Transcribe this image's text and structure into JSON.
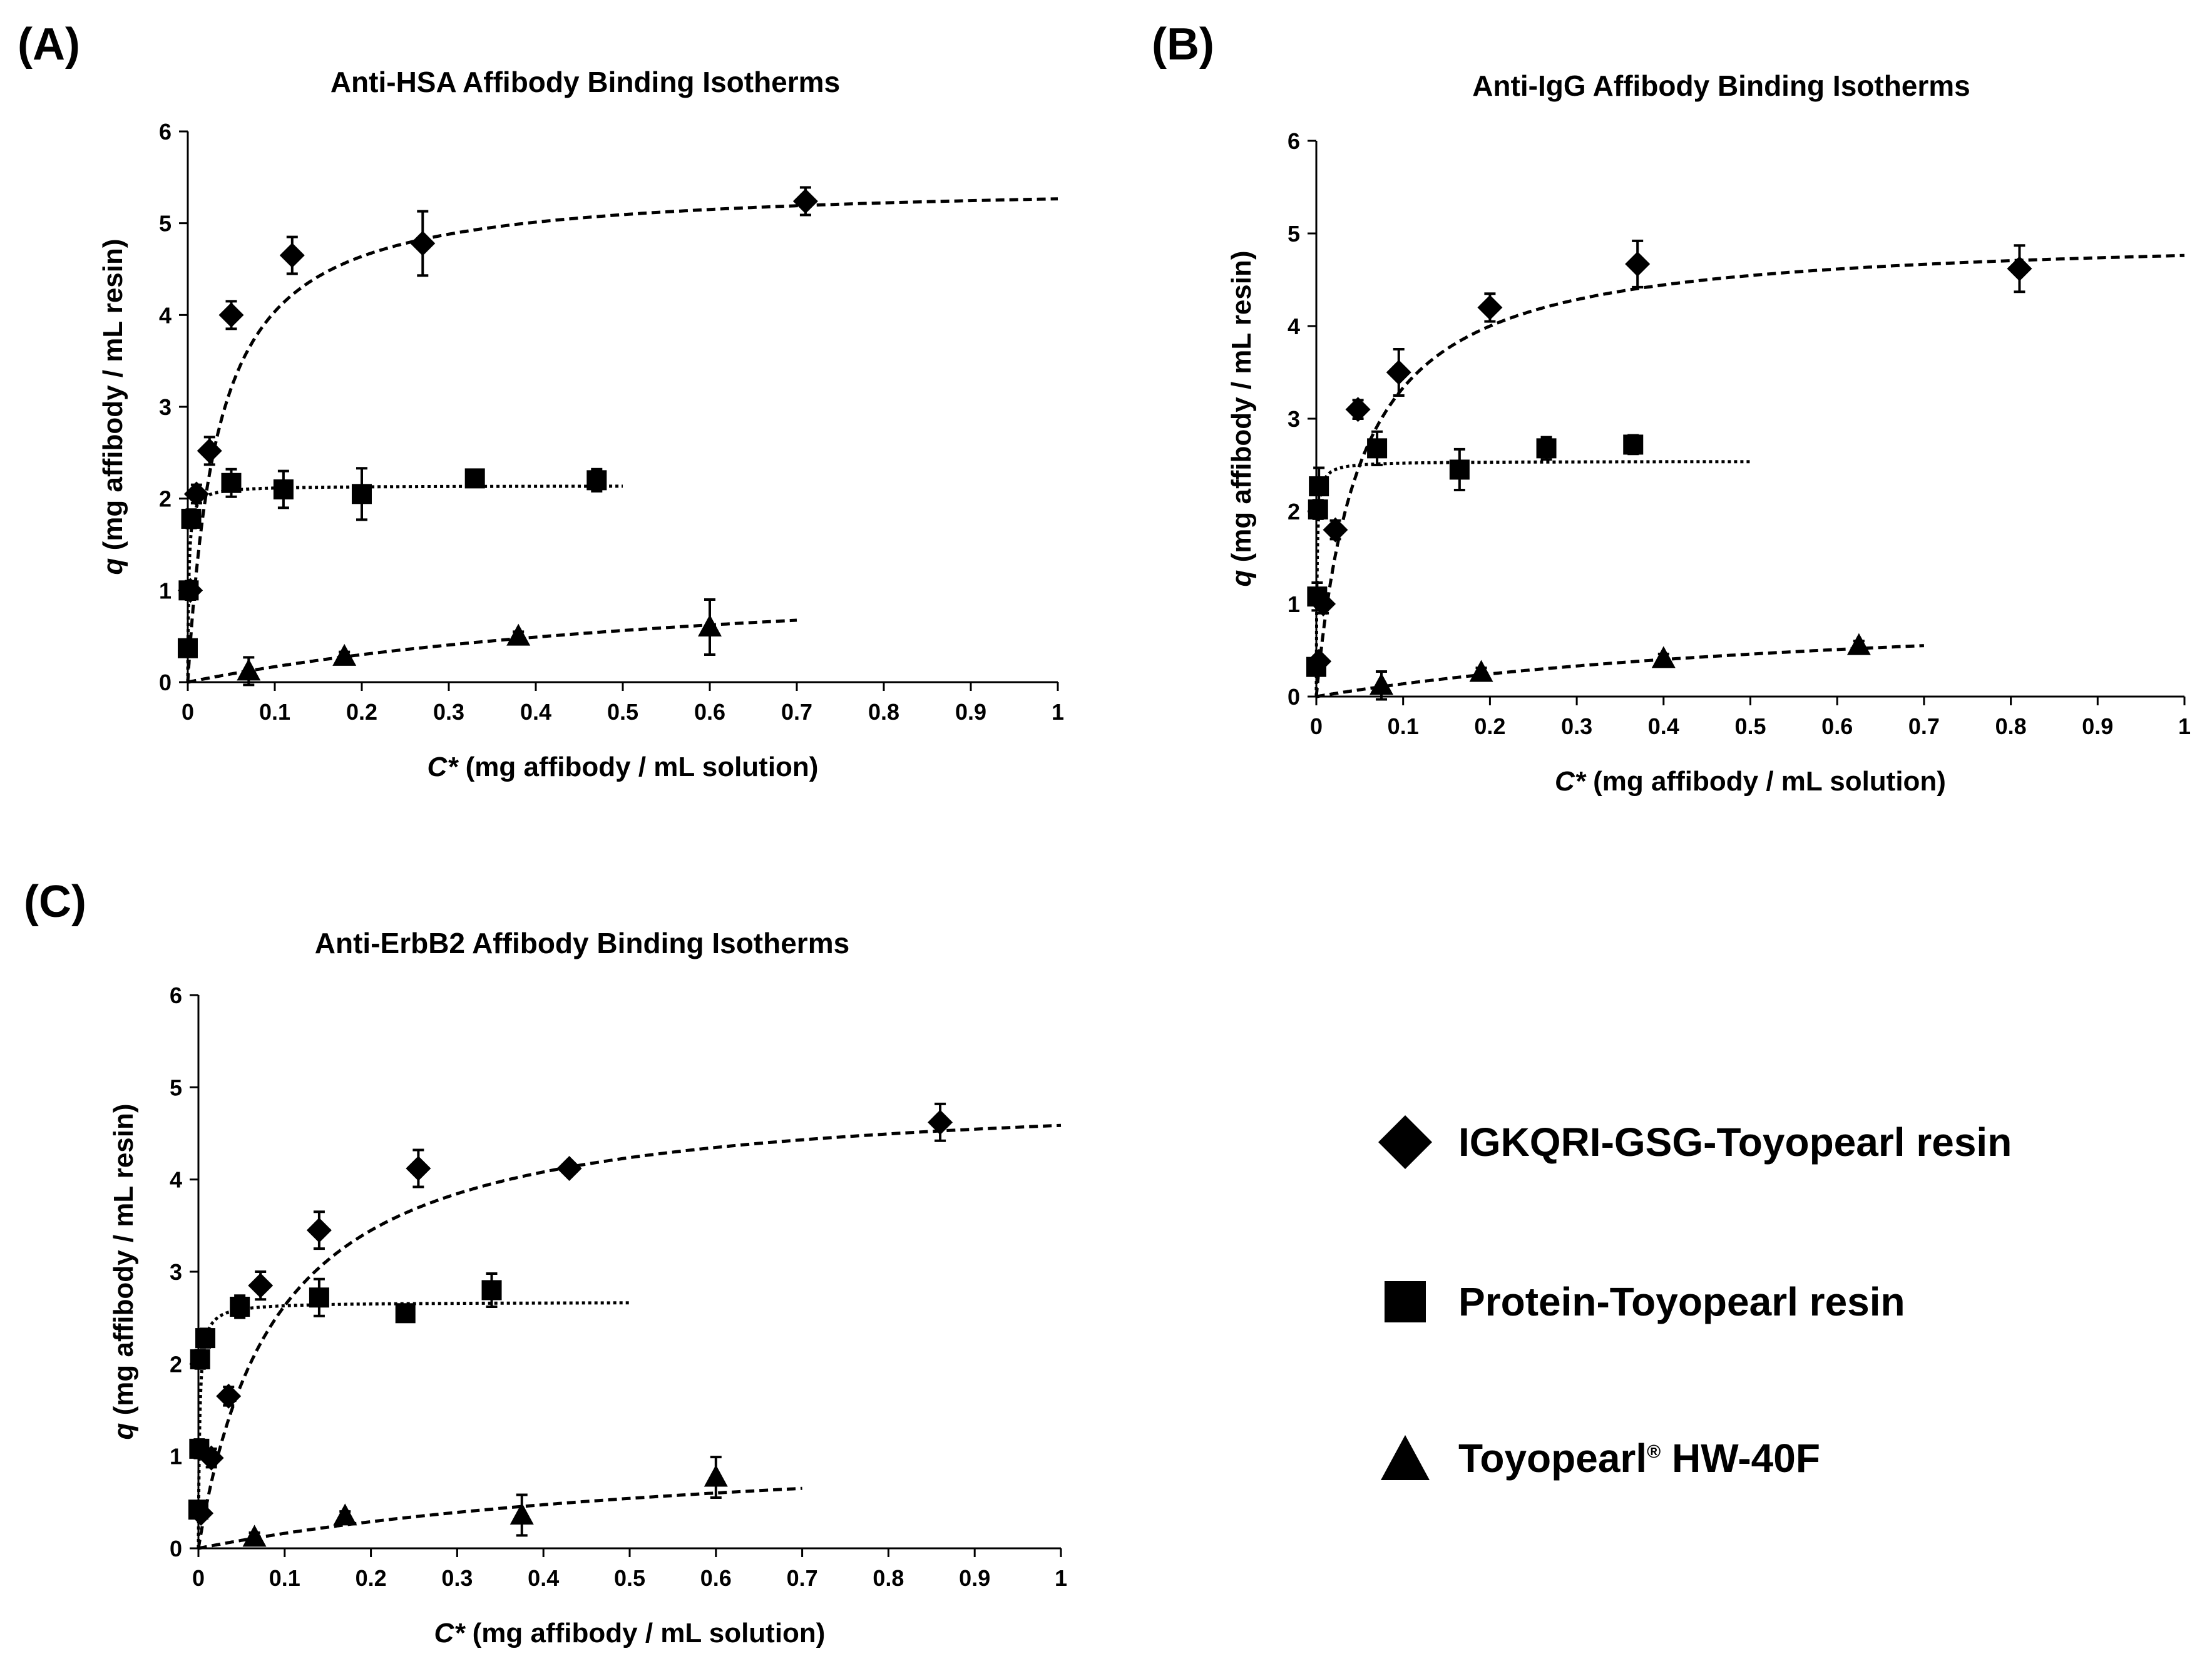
{
  "legend": {
    "items": [
      {
        "marker": "diamond",
        "label": "IGKQRI-GSG-Toyopearl resin"
      },
      {
        "marker": "square",
        "label": "Protein-Toyopearl resin"
      },
      {
        "marker": "triangle",
        "label_main": "Toyopearl",
        "label_sup": "®",
        "label_rest": " HW-40F"
      }
    ]
  },
  "chart_data": [
    {
      "panel": "(A)",
      "type": "scatter",
      "title": "Anti-HSA Affibody Binding Isotherms",
      "xlabel_italic": "C*",
      "xlabel_rest": " (mg affibody / mL solution)",
      "ylabel_italic": "q",
      "ylabel_rest": " (mg affibody / mL resin)",
      "xlim": [
        0,
        1
      ],
      "ylim": [
        0,
        6
      ],
      "xticks": [
        "0",
        "0.1",
        "0.2",
        "0.3",
        "0.4",
        "0.5",
        "0.6",
        "0.7",
        "0.8",
        "0.9",
        "1"
      ],
      "yticks": [
        "0",
        "1",
        "2",
        "3",
        "4",
        "5",
        "6"
      ],
      "series": [
        {
          "name": "IGKQRI-GSG-Toyopearl resin",
          "marker": "diamond",
          "x": [
            0.003,
            0.01,
            0.025,
            0.05,
            0.12,
            0.27,
            0.71
          ],
          "y": [
            1.0,
            2.05,
            2.52,
            4.0,
            4.65,
            4.78,
            5.24
          ],
          "err": [
            0.1,
            0.1,
            0.15,
            0.15,
            0.2,
            0.35,
            0.15
          ],
          "fit": {
            "qmax": 5.45,
            "kd": 0.035,
            "xmax": 1.0,
            "style": "dashed"
          }
        },
        {
          "name": "Protein-Toyopearl resin",
          "marker": "square",
          "x": [
            0.0,
            0.001,
            0.004,
            0.05,
            0.11,
            0.2,
            0.33,
            0.47
          ],
          "y": [
            0.37,
            1.0,
            1.78,
            2.17,
            2.1,
            2.05,
            2.22,
            2.2
          ],
          "err": [
            0.05,
            0.05,
            0.1,
            0.15,
            0.2,
            0.28,
            0.05,
            0.12
          ],
          "fit": {
            "qmax": 2.14,
            "kd": 0.0012,
            "xmax": 0.5,
            "style": "dotted"
          }
        },
        {
          "name": "Toyopearl HW-40F",
          "marker": "triangle",
          "x": [
            0.07,
            0.18,
            0.38,
            0.6
          ],
          "y": [
            0.12,
            0.28,
            0.5,
            0.6
          ],
          "err": [
            0.15,
            0.05,
            0.05,
            0.3
          ],
          "fit": {
            "qmax": 1.35,
            "kd": 0.7,
            "xmax": 0.7,
            "style": "dashed"
          }
        }
      ]
    },
    {
      "panel": "(B)",
      "type": "scatter",
      "title": "Anti-IgG Affibody Binding Isotherms",
      "xlabel_italic": "C*",
      "xlabel_rest": " (mg affibody / mL solution)",
      "ylabel_italic": "q",
      "ylabel_rest": " (mg affibody / mL resin)",
      "xlim": [
        0,
        1
      ],
      "ylim": [
        0,
        6
      ],
      "xticks": [
        "0",
        "0.1",
        "0.2",
        "0.3",
        "0.4",
        "0.5",
        "0.6",
        "0.7",
        "0.8",
        "0.9",
        "1"
      ],
      "yticks": [
        "0",
        "1",
        "2",
        "3",
        "4",
        "5",
        "6"
      ],
      "series": [
        {
          "name": "IGKQRI-GSG-Toyopearl resin",
          "marker": "diamond",
          "x": [
            0.003,
            0.008,
            0.022,
            0.048,
            0.095,
            0.2,
            0.37,
            0.81
          ],
          "y": [
            0.38,
            1.0,
            1.8,
            3.1,
            3.5,
            4.2,
            4.67,
            4.62
          ],
          "err": [
            0.05,
            0.1,
            0.1,
            0.1,
            0.25,
            0.15,
            0.25,
            0.25
          ],
          "fit": {
            "qmax": 5.0,
            "kd": 0.05,
            "xmax": 1.0,
            "style": "dashed"
          }
        },
        {
          "name": "Protein-Toyopearl resin",
          "marker": "square",
          "x": [
            0.0,
            0.001,
            0.002,
            0.003,
            0.07,
            0.165,
            0.265,
            0.365
          ],
          "y": [
            0.32,
            1.08,
            2.02,
            2.27,
            2.68,
            2.45,
            2.68,
            2.72
          ],
          "err": [
            0.05,
            0.15,
            0.1,
            0.2,
            0.18,
            0.22,
            0.12,
            0.1
          ],
          "fit": {
            "qmax": 2.54,
            "kd": 0.0008,
            "xmax": 0.5,
            "style": "dotted"
          }
        },
        {
          "name": "Toyopearl HW-40F",
          "marker": "triangle",
          "x": [
            0.075,
            0.19,
            0.4,
            0.625
          ],
          "y": [
            0.12,
            0.26,
            0.41,
            0.55
          ],
          "err": [
            0.15,
            0.05,
            0.05,
            0.05
          ],
          "fit": {
            "qmax": 1.1,
            "kd": 0.7,
            "xmax": 0.7,
            "style": "dashed"
          }
        }
      ]
    },
    {
      "panel": "(C)",
      "type": "scatter",
      "title": "Anti-ErbB2 Affibody Binding Isotherms",
      "xlabel_italic": "C*",
      "xlabel_rest": " (mg affibody / mL solution)",
      "ylabel_italic": "q",
      "ylabel_rest": " (mg affibody / mL resin)",
      "xlim": [
        0,
        1
      ],
      "ylim": [
        0,
        6
      ],
      "xticks": [
        "0",
        "0.1",
        "0.2",
        "0.3",
        "0.4",
        "0.5",
        "0.6",
        "0.7",
        "0.8",
        "0.9",
        "1"
      ],
      "yticks": [
        "0",
        "1",
        "2",
        "3",
        "4",
        "5",
        "6"
      ],
      "series": [
        {
          "name": "IGKQRI-GSG-Toyopearl resin",
          "marker": "diamond",
          "x": [
            0.003,
            0.015,
            0.035,
            0.072,
            0.14,
            0.255,
            0.43,
            0.86
          ],
          "y": [
            0.38,
            0.98,
            1.65,
            2.85,
            3.45,
            4.12,
            4.12,
            4.62
          ],
          "err": [
            0.05,
            0.1,
            0.1,
            0.15,
            0.2,
            0.2,
            0.05,
            0.2
          ],
          "fit": {
            "qmax": 5.0,
            "kd": 0.09,
            "xmax": 1.0,
            "style": "dashed"
          }
        },
        {
          "name": "Protein-Toyopearl resin",
          "marker": "square",
          "x": [
            0.0,
            0.001,
            0.002,
            0.008,
            0.048,
            0.14,
            0.24,
            0.34
          ],
          "y": [
            0.42,
            1.08,
            2.05,
            2.28,
            2.62,
            2.72,
            2.55,
            2.8
          ],
          "err": [
            0.05,
            0.1,
            0.1,
            0.1,
            0.12,
            0.2,
            0.05,
            0.18
          ],
          "fit": {
            "qmax": 2.67,
            "kd": 0.0015,
            "xmax": 0.5,
            "style": "dotted"
          }
        },
        {
          "name": "Toyopearl HW-40F",
          "marker": "triangle",
          "x": [
            0.065,
            0.17,
            0.375,
            0.6
          ],
          "y": [
            0.12,
            0.35,
            0.36,
            0.77
          ],
          "err": [
            0.05,
            0.05,
            0.22,
            0.22
          ],
          "fit": {
            "qmax": 1.3,
            "kd": 0.7,
            "xmax": 0.7,
            "style": "dashed"
          }
        }
      ]
    }
  ]
}
